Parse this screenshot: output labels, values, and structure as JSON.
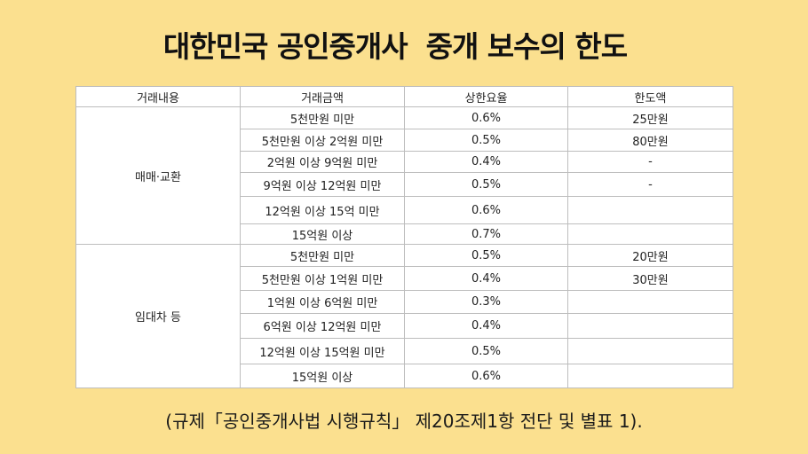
{
  "title": "대한민국 공인중개사  중개 보수의 한도",
  "table": {
    "headers": [
      "거래내용",
      "거래금액",
      "상한요율",
      "한도액"
    ],
    "groups": [
      {
        "category": "매매·교환",
        "rows": [
          {
            "amount": "5천만원 미만",
            "rate": "0.6%",
            "limit": "25만원"
          },
          {
            "amount": "5천만원 이상 2억원 미만",
            "rate": "0.5%",
            "limit": "80만원"
          },
          {
            "amount": "2억원 이상 9억원 미만",
            "rate": "0.4%",
            "limit": "-"
          },
          {
            "amount": "9억원 이상 12억원 미만",
            "rate": "0.5%",
            "limit": "-"
          },
          {
            "amount": "12억원 이상 15억 미만",
            "rate": "0.6%",
            "limit": ""
          },
          {
            "amount": "15억원 이상",
            "rate": "0.7%",
            "limit": ""
          }
        ]
      },
      {
        "category": "임대차 등",
        "rows": [
          {
            "amount": "5천만원 미만",
            "rate": "0.5%",
            "limit": "20만원"
          },
          {
            "amount": "5천만원 이상 1억원 미만",
            "rate": "0.4%",
            "limit": "30만원"
          },
          {
            "amount": "1억원 이상 6억원 미만",
            "rate": "0.3%",
            "limit": ""
          },
          {
            "amount": "6억원 이상 12억원 미만",
            "rate": "0.4%",
            "limit": ""
          },
          {
            "amount": "12억원 이상 15억원 미만",
            "rate": "0.5%",
            "limit": ""
          },
          {
            "amount": "15억원 이상",
            "rate": "0.6%",
            "limit": ""
          }
        ]
      }
    ]
  },
  "caption": "(규제「공인중개사법 시행규칙」 제20조제1항 전단 및 별표 1).",
  "colors": {
    "background": "#fbe08f",
    "table_background": "#ffffff",
    "border": "#bdbdbd"
  }
}
